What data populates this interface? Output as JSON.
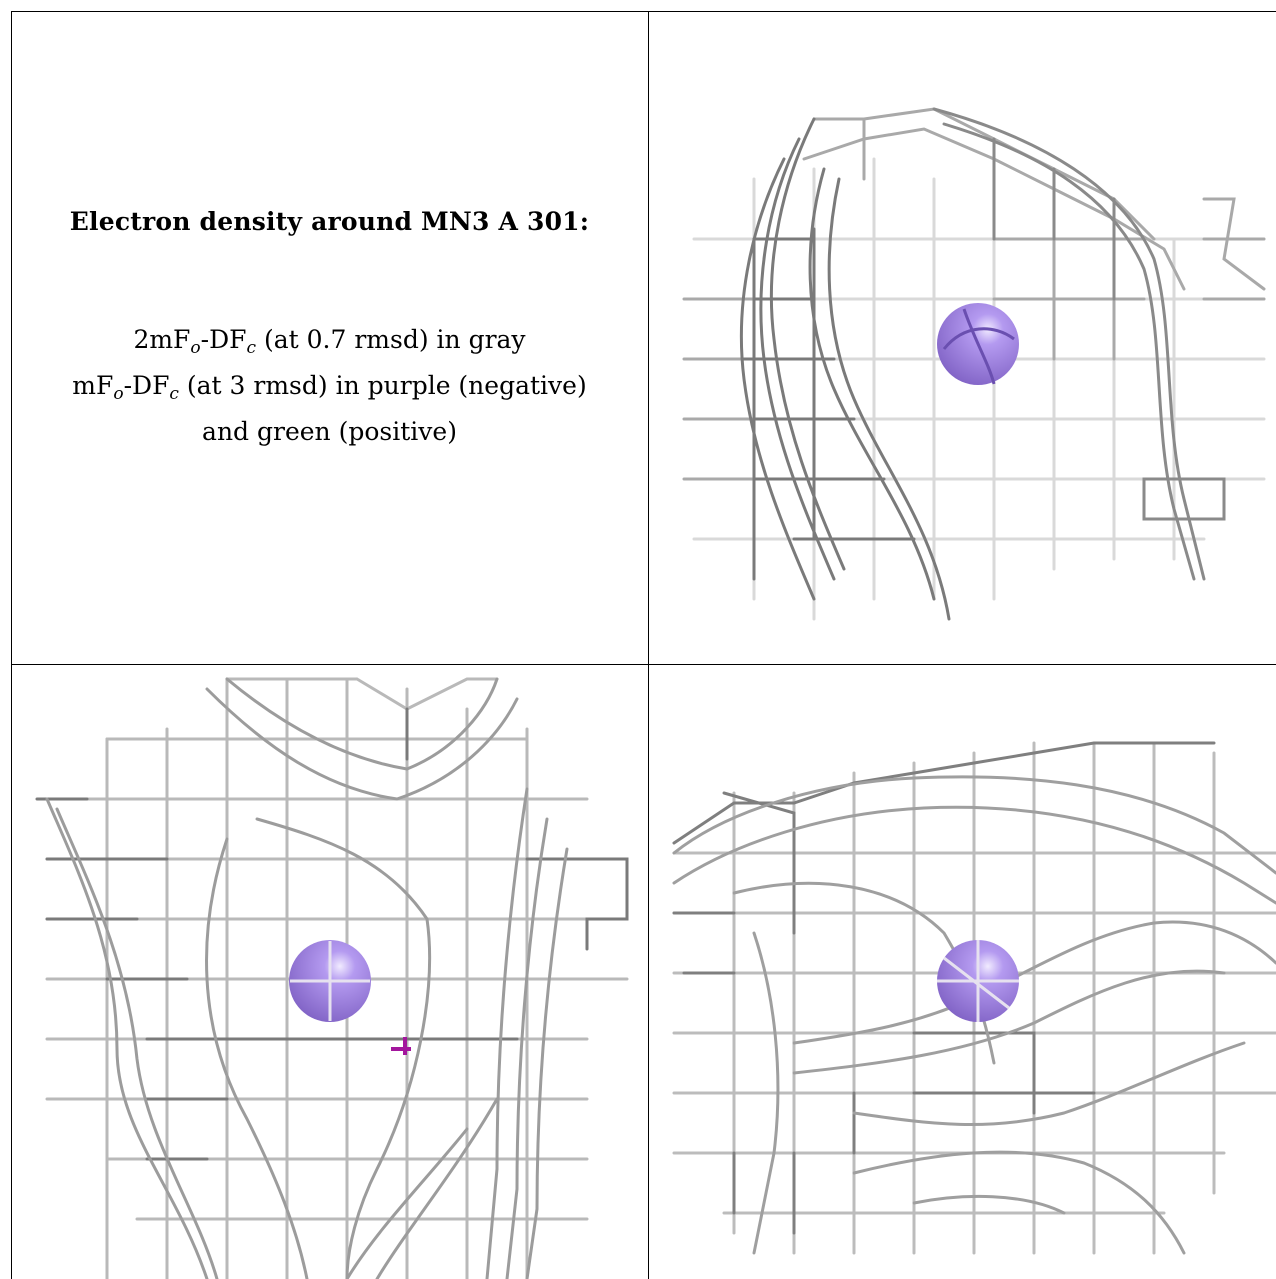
{
  "caption": {
    "title": "Electron density around MN3 A 301:",
    "line1": {
      "a": "2mF",
      "a_sub": "o",
      "b": "-DF",
      "b_sub": "c",
      "rest": " (at 0.7 rmsd) in gray"
    },
    "line2": {
      "a": "mF",
      "a_sub": "o",
      "b": "-DF",
      "b_sub": "c",
      "rest": " (at 3 rmsd) in purple (negative)"
    },
    "line3": "and green (positive)"
  },
  "colors": {
    "mesh_dark": "#6f6f6f",
    "mesh_mid": "#a4a4a4",
    "mesh_light": "#d2d2d2",
    "atom": "#9b7fd6",
    "atom_highlight": "#e9e0fb",
    "negative_density": "#a3169d"
  },
  "panels": [
    {
      "id": "view-1",
      "icons": [
        "manganese-atom-sphere",
        "density-mesh"
      ]
    },
    {
      "id": "view-2",
      "icons": [
        "manganese-atom-sphere",
        "density-mesh",
        "negative-difference-density"
      ]
    },
    {
      "id": "view-3",
      "icons": [
        "manganese-atom-sphere",
        "density-mesh"
      ]
    }
  ]
}
